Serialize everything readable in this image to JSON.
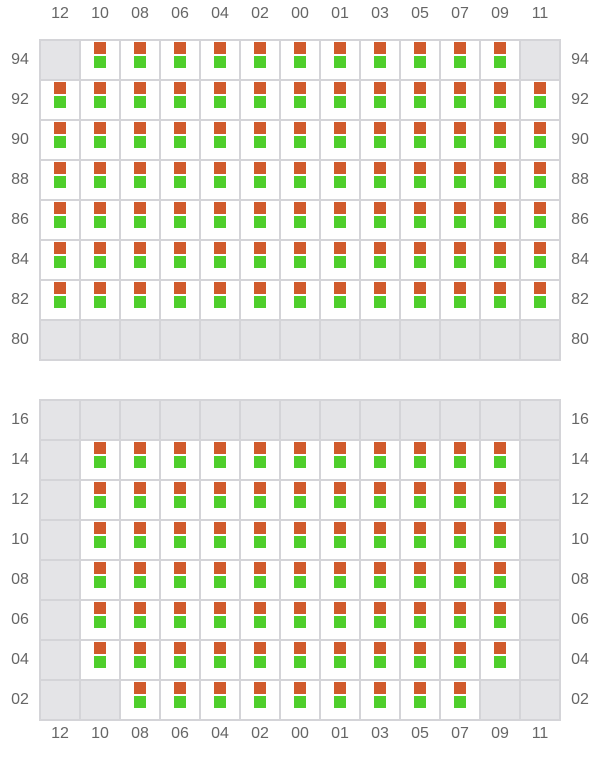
{
  "columns": [
    "12",
    "10",
    "08",
    "06",
    "04",
    "02",
    "00",
    "01",
    "03",
    "05",
    "07",
    "09",
    "11"
  ],
  "colors": {
    "top_marker": "#d05a2c",
    "bottom_marker": "#4fcf2c",
    "empty_cell": "#e4e4e7",
    "grid_line": "#d4d4d8"
  },
  "top_grid": {
    "rows": [
      {
        "label": "94",
        "cells": "0111111111110"
      },
      {
        "label": "92",
        "cells": "1111111111111"
      },
      {
        "label": "90",
        "cells": "1111111111111"
      },
      {
        "label": "88",
        "cells": "1111111111111"
      },
      {
        "label": "86",
        "cells": "1111111111111"
      },
      {
        "label": "84",
        "cells": "1111111111111"
      },
      {
        "label": "82",
        "cells": "1111111111111"
      },
      {
        "label": "80",
        "cells": "0000000000000"
      }
    ]
  },
  "bottom_grid": {
    "rows": [
      {
        "label": "16",
        "cells": "0000000000000"
      },
      {
        "label": "14",
        "cells": "0111111111110"
      },
      {
        "label": "12",
        "cells": "0111111111110"
      },
      {
        "label": "10",
        "cells": "0111111111110"
      },
      {
        "label": "08",
        "cells": "0111111111110"
      },
      {
        "label": "06",
        "cells": "0111111111110"
      },
      {
        "label": "04",
        "cells": "0111111111110"
      },
      {
        "label": "02",
        "cells": "0011111111100"
      }
    ]
  }
}
